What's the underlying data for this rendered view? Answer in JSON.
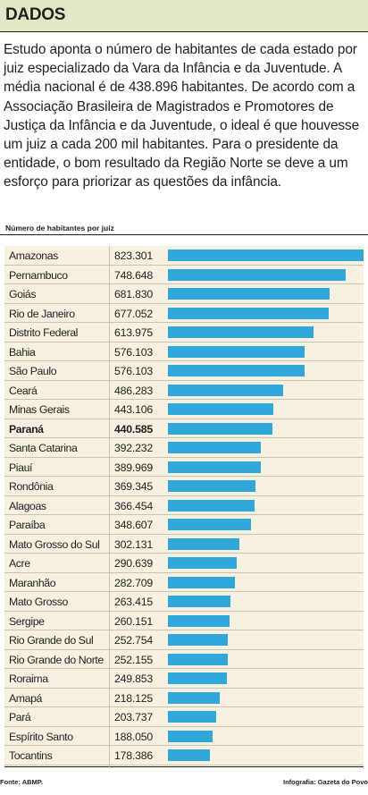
{
  "header": {
    "title": "DADOS"
  },
  "intro": "Estudo aponta o número de habitantes de cada estado por juiz especializado da Vara da Infância e da Juventude. A média nacional é de 438.896 habitantes. De acordo com a Associação Brasileira de Magistrados e Promotores de Justiça da Infância e da Juventude, o ideal é que houvesse um juiz a cada 200 mil habitantes. Para o presidente da entidade, o bom resultado da Região Norte se deve a um esforço para priorizar as questões da infância.",
  "colors": {
    "bar": "#31a6d9",
    "header_bg": "#e3e7c8",
    "chart_bg": "#f6f1e1"
  },
  "chart_data": {
    "type": "bar",
    "orientation": "horizontal",
    "title": "Número de habitantes por juiz",
    "highlight": "Paraná",
    "categories": [
      "Amazonas",
      "Pernambuco",
      "Goiás",
      "Rio de Janeiro",
      "Distrito Federal",
      "Bahia",
      "São Paulo",
      "Ceará",
      "Minas Gerais",
      "Paraná",
      "Santa Catarina",
      "Piauí",
      "Rondônia",
      "Alagoas",
      "Paraíba",
      "Mato Grosso do Sul",
      "Acre",
      "Maranhão",
      "Mato Grosso",
      "Sergipe",
      "Rio Grande do Sul",
      "Rio Grande do Norte",
      "Roraima",
      "Amapá",
      "Pará",
      "Espírito Santo",
      "Tocantins"
    ],
    "values": [
      823301,
      748648,
      681830,
      677052,
      613975,
      576103,
      576103,
      486283,
      443106,
      440585,
      392232,
      389969,
      369345,
      366454,
      348607,
      302131,
      290639,
      282709,
      263415,
      260151,
      252754,
      252155,
      249853,
      218125,
      203737,
      188050,
      178386
    ],
    "labels": [
      "823.301",
      "748.648",
      "681.830",
      "677.052",
      "613.975",
      "576.103",
      "576.103",
      "486.283",
      "443.106",
      "440.585",
      "392.232",
      "389.969",
      "369.345",
      "366.454",
      "348.607",
      "302.131",
      "290.639",
      "282.709",
      "263.415",
      "260.151",
      "252.754",
      "252.155",
      "249.853",
      "218.125",
      "203.737",
      "188.050",
      "178.386"
    ],
    "xlim": [
      0,
      823301
    ]
  },
  "footer": {
    "source": "Fonte: ABMP.",
    "credit": "Infografia: Gazeta do Povo"
  }
}
